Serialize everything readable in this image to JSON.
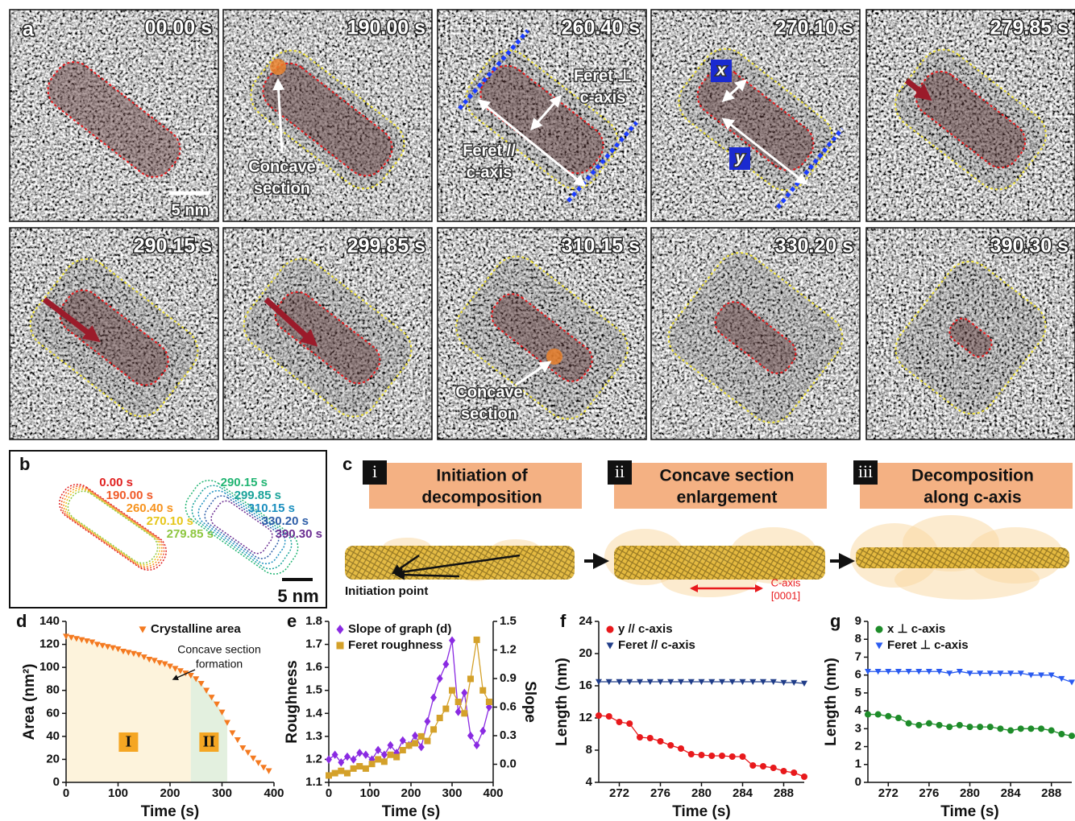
{
  "panel_a": {
    "label": "a",
    "times": [
      "00.00 s",
      "190.00 s",
      "260.40 s",
      "270.10 s",
      "279.85 s",
      "290.15 s",
      "299.85 s",
      "310.15 s",
      "330.20 s",
      "390.30 s"
    ],
    "scale_bar": "5 nm",
    "concave_label_1": [
      "Concave",
      "section"
    ],
    "feret_perp": [
      "Feret ⊥",
      "c-axis"
    ],
    "feret_par": [
      "Feret //",
      "c-axis"
    ],
    "x_marker": "x",
    "y_marker": "y",
    "concave_label_2": [
      "Concave",
      "section"
    ]
  },
  "panel_b": {
    "label": "b",
    "times": [
      {
        "text": "0.00 s",
        "color": "#e0201f"
      },
      {
        "text": "190.00 s",
        "color": "#f05a28"
      },
      {
        "text": "260.40 s",
        "color": "#f7931e"
      },
      {
        "text": "270.10 s",
        "color": "#e6c619"
      },
      {
        "text": "279.85 s",
        "color": "#8dc63f"
      },
      {
        "text": "290.15 s",
        "color": "#22b573"
      },
      {
        "text": "299.85 s",
        "color": "#1aa39a"
      },
      {
        "text": "310.15 s",
        "color": "#1b8fbf"
      },
      {
        "text": "330.20 s",
        "color": "#2e5ea8"
      },
      {
        "text": "390.30 s",
        "color": "#6a2c91"
      }
    ],
    "scale_bar": "5 nm"
  },
  "panel_c": {
    "label": "c",
    "steps": [
      {
        "numeral": "i",
        "title": [
          "Initiation of",
          "decomposition"
        ]
      },
      {
        "numeral": "ii",
        "title": [
          "Concave section",
          "enlargement"
        ]
      },
      {
        "numeral": "iii",
        "title": [
          "Decomposition",
          "along c-axis"
        ]
      }
    ],
    "initiation": "Initiation point",
    "axis_label": [
      "C-axis",
      "[0001]"
    ]
  },
  "chart_data": [
    {
      "type": "scatter",
      "label": "d",
      "xlabel": "Time (s)",
      "ylabel": "Area (nm²)",
      "xlim": [
        0,
        400
      ],
      "xticks": [
        0,
        100,
        200,
        300,
        400
      ],
      "ylim": [
        0,
        140
      ],
      "yticks": [
        0,
        20,
        40,
        60,
        80,
        100,
        120,
        140
      ],
      "x": [
        0,
        10,
        20,
        30,
        40,
        50,
        60,
        70,
        80,
        90,
        100,
        110,
        120,
        130,
        140,
        150,
        160,
        170,
        180,
        190,
        200,
        210,
        220,
        230,
        240,
        250,
        260,
        270,
        280,
        290,
        300,
        310,
        320,
        330,
        340,
        350,
        360,
        370,
        380,
        390
      ],
      "series": [
        {
          "name": "Crystalline area",
          "color": "#f47a20",
          "marker": "triangle-down",
          "values": [
            127,
            126,
            125,
            124,
            123,
            122,
            120,
            119,
            118,
            117,
            116,
            114,
            113,
            112,
            111,
            109,
            107,
            106,
            104,
            103,
            101,
            99,
            97,
            95,
            93,
            90,
            86,
            80,
            74,
            68,
            61,
            52,
            43,
            37,
            30,
            26,
            21,
            17,
            13,
            10
          ]
        }
      ],
      "regions": [
        {
          "label": "I",
          "xlim": [
            0,
            240
          ],
          "color": "#fdf3dc"
        },
        {
          "label": "II",
          "xlim": [
            240,
            310
          ],
          "color": "#e3f0df"
        }
      ],
      "annotation": [
        "Concave section",
        "formation"
      ]
    },
    {
      "type": "line",
      "label": "e",
      "xlabel": "Time (s)",
      "ylabel": "Roughness",
      "y2label": "Slope",
      "xlim": [
        0,
        400
      ],
      "xticks": [
        0,
        100,
        200,
        300,
        400
      ],
      "ylim": [
        1.1,
        1.8
      ],
      "yticks": [
        1.1,
        1.2,
        1.3,
        1.4,
        1.5,
        1.6,
        1.7,
        1.8
      ],
      "y2lim": [
        -0.19,
        1.5
      ],
      "y2ticks": [
        {
          "value": 0,
          "label": "0.0"
        },
        0.3,
        0.6,
        0.9,
        1.2,
        1.5
      ],
      "x": [
        0,
        15,
        30,
        45,
        60,
        75,
        90,
        105,
        120,
        135,
        150,
        165,
        180,
        195,
        210,
        225,
        240,
        255,
        270,
        285,
        300,
        315,
        330,
        345,
        360,
        375,
        390
      ],
      "series": [
        {
          "name": "Slope of graph (d)",
          "color": "#8a2be2",
          "marker": "diamond",
          "axis": "y2",
          "values": [
            0.05,
            0.1,
            0.02,
            0.08,
            0.05,
            0.12,
            0.1,
            0.05,
            0.15,
            0.1,
            0.2,
            0.12,
            0.25,
            0.2,
            0.3,
            0.18,
            0.45,
            0.7,
            0.9,
            1.05,
            1.3,
            0.55,
            0.75,
            0.3,
            0.2,
            0.35,
            0.6
          ]
        },
        {
          "name": "Feret roughness",
          "color": "#d4a12a",
          "marker": "square",
          "values": [
            1.13,
            1.14,
            1.15,
            1.14,
            1.16,
            1.17,
            1.16,
            1.18,
            1.2,
            1.19,
            1.22,
            1.21,
            1.24,
            1.26,
            1.27,
            1.3,
            1.28,
            1.33,
            1.38,
            1.42,
            1.5,
            1.45,
            1.4,
            1.55,
            1.72,
            1.5,
            1.45
          ]
        }
      ]
    },
    {
      "type": "line",
      "label": "f",
      "xlabel": "Time (s)",
      "ylabel": "Length (nm)",
      "xlim": [
        270,
        290
      ],
      "xticks": [
        272,
        276,
        280,
        284,
        288
      ],
      "ylim": [
        4,
        24
      ],
      "yticks": [
        4,
        8,
        12,
        16,
        20,
        24
      ],
      "x": [
        270,
        271,
        272,
        273,
        274,
        275,
        276,
        277,
        278,
        279,
        280,
        281,
        282,
        283,
        284,
        285,
        286,
        287,
        288,
        289,
        290
      ],
      "series": [
        {
          "name": "y // c-axis",
          "color": "#e8191c",
          "marker": "circle",
          "values": [
            12.3,
            12.2,
            11.5,
            11.3,
            9.6,
            9.5,
            9.1,
            8.6,
            8.2,
            7.5,
            7.4,
            7.3,
            7.3,
            7.2,
            7.2,
            6.1,
            6.0,
            5.8,
            5.4,
            5.2,
            4.7
          ]
        },
        {
          "name": "Feret // c-axis",
          "color": "#1f3c88",
          "marker": "triangle-down",
          "values": [
            16.5,
            16.5,
            16.5,
            16.5,
            16.5,
            16.5,
            16.5,
            16.5,
            16.5,
            16.5,
            16.5,
            16.5,
            16.5,
            16.5,
            16.5,
            16.5,
            16.5,
            16.5,
            16.4,
            16.4,
            16.3
          ]
        }
      ]
    },
    {
      "type": "line",
      "label": "g",
      "xlabel": "Time (s)",
      "ylabel": "Length (nm)",
      "xlim": [
        270,
        290
      ],
      "xticks": [
        272,
        276,
        280,
        284,
        288
      ],
      "ylim": [
        0,
        9
      ],
      "yticks": [
        0,
        1,
        2,
        3,
        4,
        5,
        6,
        7,
        8,
        9
      ],
      "x": [
        270,
        271,
        272,
        273,
        274,
        275,
        276,
        277,
        278,
        279,
        280,
        281,
        282,
        283,
        284,
        285,
        286,
        287,
        288,
        289,
        290
      ],
      "series": [
        {
          "name": "x ⊥ c-axis",
          "color": "#1e8c2a",
          "marker": "circle",
          "values": [
            3.8,
            3.8,
            3.7,
            3.6,
            3.3,
            3.2,
            3.3,
            3.2,
            3.1,
            3.2,
            3.1,
            3.1,
            3.1,
            3.0,
            2.9,
            3.0,
            3.0,
            3.0,
            2.9,
            2.7,
            2.6
          ]
        },
        {
          "name": "Feret ⊥ c-axis",
          "color": "#2a5bf0",
          "marker": "triangle-down",
          "values": [
            6.2,
            6.2,
            6.2,
            6.2,
            6.2,
            6.2,
            6.2,
            6.2,
            6.1,
            6.2,
            6.1,
            6.1,
            6.1,
            6.1,
            6.1,
            6.1,
            6.0,
            6.0,
            6.0,
            5.8,
            5.6
          ]
        }
      ]
    }
  ]
}
